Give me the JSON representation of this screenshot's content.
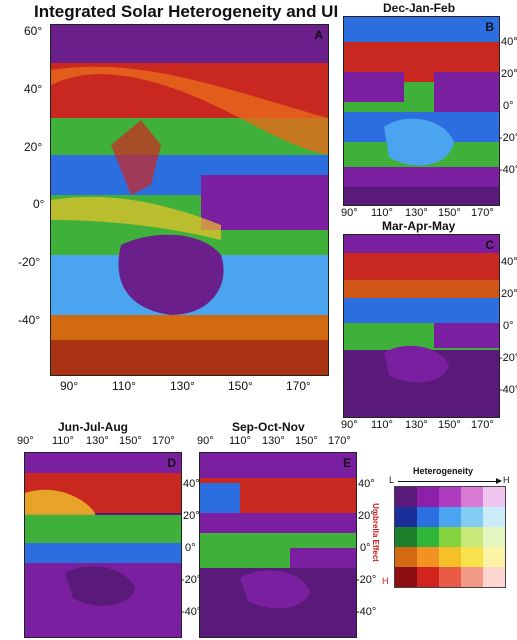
{
  "main_title": "Integrated Solar Heterogeneity and UI",
  "panels": {
    "A": {
      "label": "A"
    },
    "B": {
      "label": "B",
      "title": "Dec-Jan-Feb"
    },
    "C": {
      "label": "C",
      "title": "Mar-Apr-May"
    },
    "D": {
      "label": "D",
      "title": "Jun-Jul-Aug"
    },
    "E": {
      "label": "E",
      "title": "Sep-Oct-Nov"
    }
  },
  "lon_ticks": [
    "90°",
    "110°",
    "130°",
    "150°",
    "170°"
  ],
  "lat_ticks_A": [
    "60°",
    "40°",
    "20°",
    "0°",
    "-20°",
    "-40°"
  ],
  "lat_ticks_small": [
    "40°",
    "20°",
    "0°",
    "-20°",
    "-40°"
  ],
  "legend": {
    "x_title": "Heterogeneity",
    "y_title": "Umbrella Effect",
    "x_low": "L",
    "x_high": "H",
    "y_low": "L",
    "y_high": "H",
    "colors": [
      [
        "#5a1a7a",
        "#8e1fa8",
        "#b03cc0",
        "#d879d4",
        "#efc4ee"
      ],
      [
        "#1a2f9a",
        "#2b6fe0",
        "#4aa4ef",
        "#84cdf2",
        "#c9ecf8"
      ],
      [
        "#1d7f2c",
        "#2fb53a",
        "#84d33f",
        "#c6e97a",
        "#e3f6bf"
      ],
      [
        "#d26a12",
        "#f19223",
        "#f5c02a",
        "#f7e24c",
        "#fbf3a6"
      ],
      [
        "#8e0f12",
        "#d1241f",
        "#ea5b45",
        "#f39a86",
        "#fbd7cf"
      ]
    ]
  }
}
